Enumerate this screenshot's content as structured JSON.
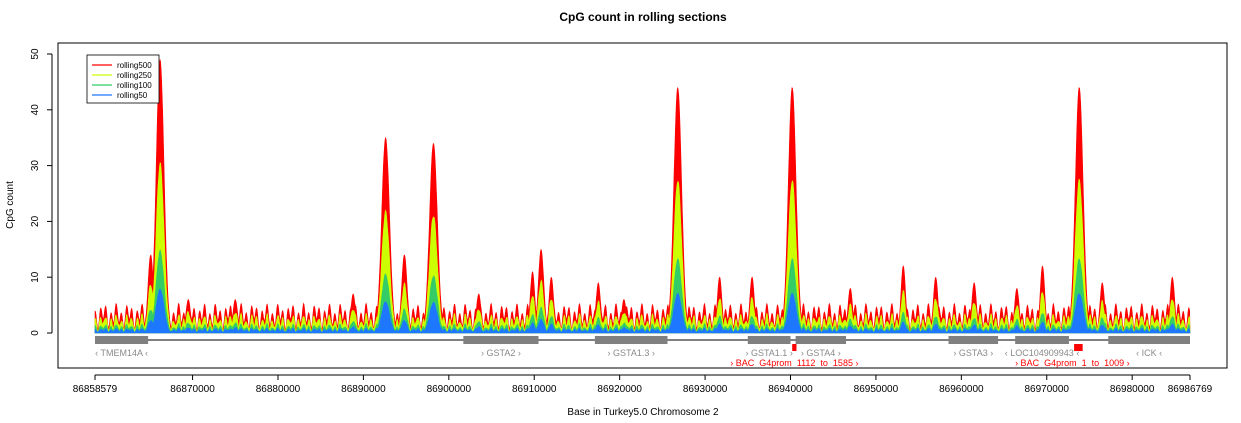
{
  "chart_data": {
    "type": "area",
    "title": "CpG count in rolling sections",
    "xlabel": "Base in Turkey5.0 Chromosome 2",
    "ylabel": "CpG count",
    "xlim": [
      86858579,
      86986769
    ],
    "ylim": [
      0,
      50
    ],
    "x_ticks": [
      "86858579",
      "86870000",
      "86880000",
      "86890000",
      "86900000",
      "86910000",
      "86920000",
      "86930000",
      "86940000",
      "86950000",
      "86960000",
      "86970000",
      "86980000",
      "86986769"
    ],
    "x_tick_values": [
      86858579,
      86870000,
      86880000,
      86890000,
      86900000,
      86910000,
      86920000,
      86930000,
      86940000,
      86950000,
      86960000,
      86970000,
      86980000,
      86986769
    ],
    "y_ticks": [
      "0",
      "10",
      "20",
      "30",
      "40",
      "50"
    ],
    "y_tick_values": [
      0,
      10,
      20,
      30,
      40,
      50
    ],
    "legend_position": "top-left",
    "series": [
      {
        "name": "rolling500",
        "color": "#ff0000",
        "scale": 1.0
      },
      {
        "name": "rolling250",
        "color": "#ccff00",
        "scale": 0.62
      },
      {
        "name": "rolling100",
        "color": "#33cc66",
        "scale": 0.3
      },
      {
        "name": "rolling50",
        "color": "#1e78ff",
        "scale": 0.16
      }
    ],
    "baseline": 3,
    "peaks": [
      {
        "x": 86865100,
        "y": 14
      },
      {
        "x": 86866200,
        "y": 49
      },
      {
        "x": 86869500,
        "y": 6
      },
      {
        "x": 86875000,
        "y": 6
      },
      {
        "x": 86888800,
        "y": 7
      },
      {
        "x": 86892600,
        "y": 35
      },
      {
        "x": 86894800,
        "y": 14
      },
      {
        "x": 86898200,
        "y": 34
      },
      {
        "x": 86903500,
        "y": 7
      },
      {
        "x": 86909800,
        "y": 11
      },
      {
        "x": 86910800,
        "y": 15
      },
      {
        "x": 86912000,
        "y": 10
      },
      {
        "x": 86917500,
        "y": 9
      },
      {
        "x": 86920500,
        "y": 6
      },
      {
        "x": 86926800,
        "y": 44
      },
      {
        "x": 86931700,
        "y": 10
      },
      {
        "x": 86935500,
        "y": 10
      },
      {
        "x": 86940200,
        "y": 44
      },
      {
        "x": 86947000,
        "y": 8
      },
      {
        "x": 86953200,
        "y": 12
      },
      {
        "x": 86957000,
        "y": 10
      },
      {
        "x": 86961500,
        "y": 9
      },
      {
        "x": 86966500,
        "y": 8
      },
      {
        "x": 86969500,
        "y": 12
      },
      {
        "x": 86973800,
        "y": 44
      },
      {
        "x": 86976500,
        "y": 9
      },
      {
        "x": 86984700,
        "y": 10
      }
    ],
    "genes": [
      {
        "label": "‹ TMEM14A ‹",
        "start": 86858579,
        "end": 86864800
      },
      {
        "label": "› GSTA2 ›",
        "start": 86901700,
        "end": 86910500
      },
      {
        "label": "› GSTA1.3 ›",
        "start": 86917100,
        "end": 86925600
      },
      {
        "label": "› GSTA1.1 ›",
        "start": 86935000,
        "end": 86940000
      },
      {
        "label": "› GSTA4 ›",
        "start": 86940600,
        "end": 86946500
      },
      {
        "label": "› GSTA3 ›",
        "start": 86958500,
        "end": 86964300
      },
      {
        "label": "‹ LOC104909943 ‹",
        "start": 86966300,
        "end": 86972600
      },
      {
        "label": "‹ ICK ‹",
        "start": 86977200,
        "end": 86986769
      }
    ],
    "features": [
      {
        "label": "› BAC_G4prom_1112_to_1585 ›",
        "start": 86940200,
        "end": 86940700
      },
      {
        "label": "› BAC_G4prom_1_to_1009 ›",
        "start": 86973200,
        "end": 86974200
      }
    ]
  }
}
